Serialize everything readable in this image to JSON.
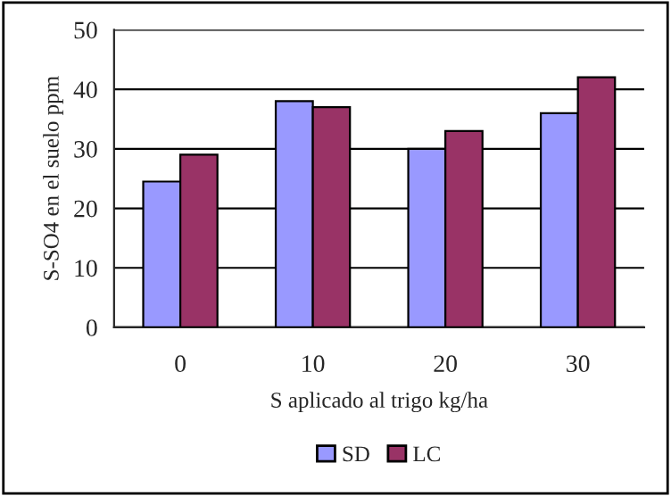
{
  "chart_data": {
    "type": "bar",
    "xlabel": "S aplicado al trigo kg/ha",
    "ylabel": "S-SO4 en el suelo ppm",
    "categories": [
      "0",
      "10",
      "20",
      "30"
    ],
    "series": [
      {
        "name": "SD",
        "color": "#9999ff",
        "values": [
          24.5,
          38,
          30,
          36
        ]
      },
      {
        "name": "LC",
        "color": "#993366",
        "values": [
          29,
          37,
          33,
          42
        ]
      }
    ],
    "ylim": [
      0,
      50
    ],
    "yticks": [
      0,
      10,
      20,
      30,
      40,
      50
    ],
    "grid": "y",
    "legend": "bottom"
  }
}
